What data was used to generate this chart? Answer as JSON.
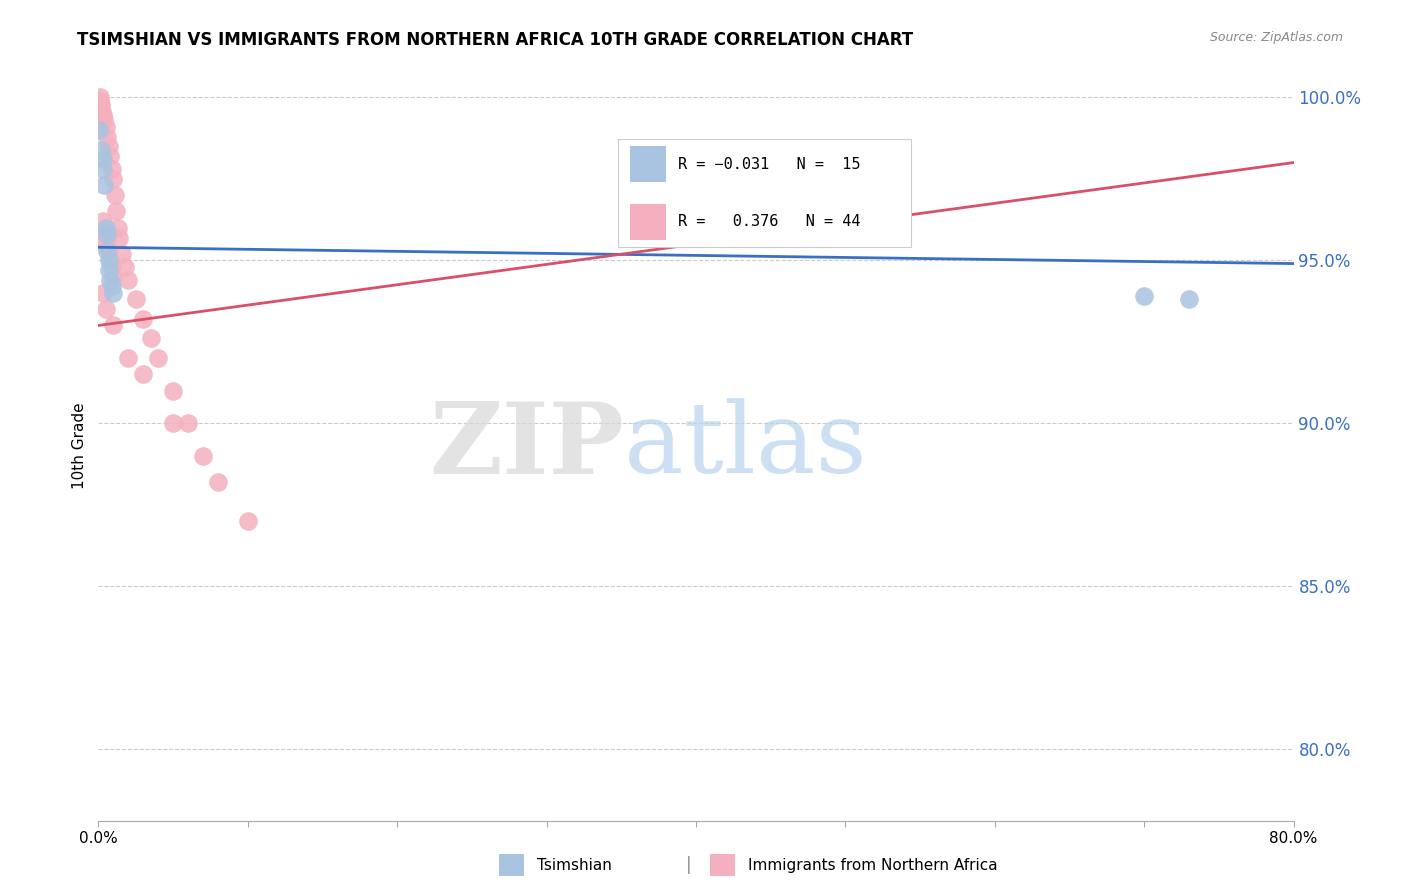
{
  "title": "TSIMSHIAN VS IMMIGRANTS FROM NORTHERN AFRICA 10TH GRADE CORRELATION CHART",
  "source": "Source: ZipAtlas.com",
  "ylabel": "10th Grade",
  "ytick_labels": [
    "80.0%",
    "85.0%",
    "90.0%",
    "95.0%",
    "100.0%"
  ],
  "ytick_values": [
    0.8,
    0.85,
    0.9,
    0.95,
    1.0
  ],
  "xlim": [
    0.0,
    0.8
  ],
  "ylim": [
    0.778,
    1.008
  ],
  "blue_color": "#a8c4e0",
  "pink_color": "#f4b0be",
  "line_blue": "#3a6fc4",
  "line_pink": "#d9506a",
  "watermark_zip": "ZIP",
  "watermark_atlas": "atlas",
  "tsimshian_x": [
    0.0005,
    0.002,
    0.003,
    0.003,
    0.004,
    0.005,
    0.006,
    0.006,
    0.007,
    0.007,
    0.008,
    0.009,
    0.01,
    0.7,
    0.73
  ],
  "tsimshian_y": [
    0.99,
    0.984,
    0.981,
    0.978,
    0.973,
    0.96,
    0.958,
    0.953,
    0.95,
    0.947,
    0.944,
    0.942,
    0.94,
    0.939,
    0.938
  ],
  "nafric_x": [
    0.001,
    0.001,
    0.002,
    0.002,
    0.003,
    0.003,
    0.003,
    0.004,
    0.004,
    0.005,
    0.005,
    0.005,
    0.006,
    0.006,
    0.007,
    0.007,
    0.008,
    0.008,
    0.009,
    0.009,
    0.01,
    0.01,
    0.011,
    0.012,
    0.013,
    0.014,
    0.016,
    0.018,
    0.02,
    0.025,
    0.03,
    0.035,
    0.04,
    0.05,
    0.06,
    0.07,
    0.08,
    0.1,
    0.003,
    0.005,
    0.01,
    0.02,
    0.03,
    0.05
  ],
  "nafric_y": [
    1.0,
    0.999,
    0.998,
    0.997,
    0.995,
    0.994,
    0.962,
    0.993,
    0.959,
    0.991,
    0.957,
    0.954,
    0.988,
    0.956,
    0.985,
    0.953,
    0.982,
    0.95,
    0.978,
    0.948,
    0.975,
    0.945,
    0.97,
    0.965,
    0.96,
    0.957,
    0.952,
    0.948,
    0.944,
    0.938,
    0.932,
    0.926,
    0.92,
    0.91,
    0.9,
    0.89,
    0.882,
    0.87,
    0.94,
    0.935,
    0.93,
    0.92,
    0.915,
    0.9
  ],
  "blue_line_x": [
    0.0,
    0.8
  ],
  "blue_line_y": [
    0.954,
    0.949
  ],
  "pink_line_x": [
    0.0,
    0.8
  ],
  "pink_line_y": [
    0.93,
    0.98
  ]
}
